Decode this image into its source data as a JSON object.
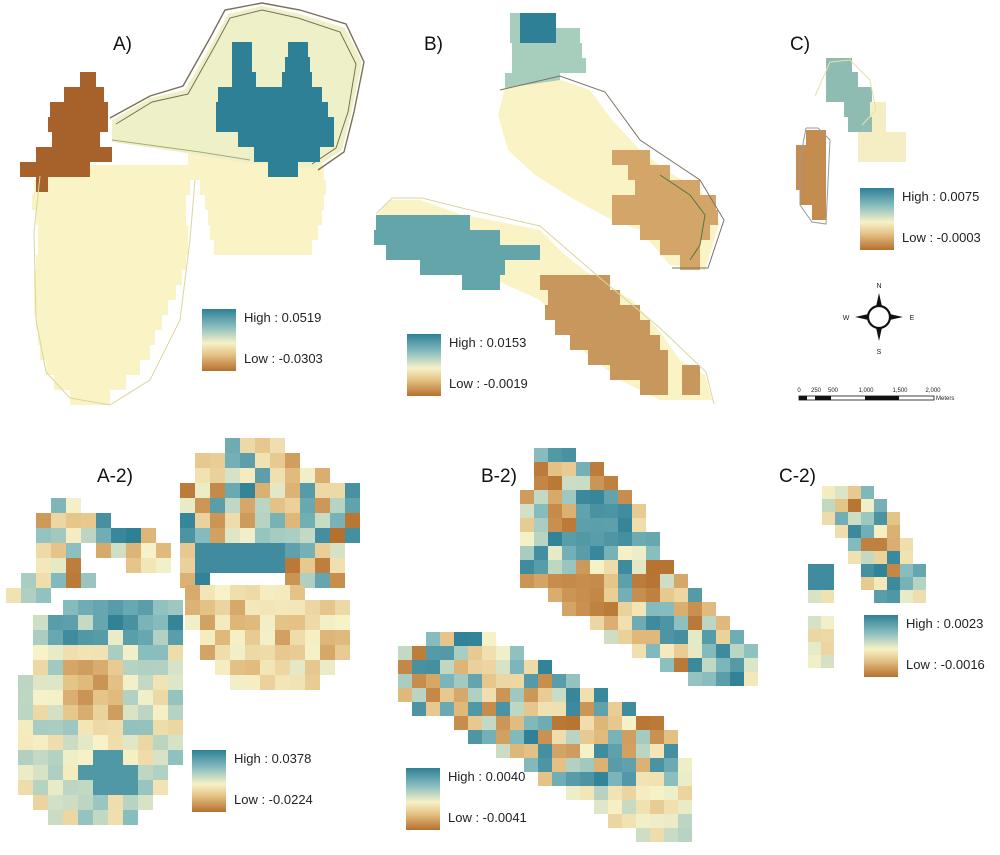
{
  "panels": {
    "a": {
      "label": "A)",
      "high": "High : 0.0519",
      "low": "Low : -0.0303"
    },
    "b": {
      "label": "B)",
      "high": "High : 0.0153",
      "low": "Low : -0.0019"
    },
    "c": {
      "label": "C)",
      "high": "High : 0.0075",
      "low": "Low : -0.0003"
    },
    "a2": {
      "label": "A-2)",
      "high": "High : 0.0378",
      "low": "Low : -0.0224"
    },
    "b2": {
      "label": "B-2)",
      "high": "High : 0.0040",
      "low": "Low : -0.0041"
    },
    "c2": {
      "label": "C-2)",
      "high": "High : 0.0023",
      "low": "Low : -0.0016"
    }
  },
  "compass": {
    "n": "N",
    "s": "S",
    "e": "E",
    "w": "W"
  },
  "scale_bar": {
    "ticks": [
      "0",
      "250",
      "500",
      "1,000",
      "1,500",
      "2,000"
    ],
    "unit": "Meters"
  },
  "colors": {
    "high": "#2e8096",
    "mid_high": "#86bcbe",
    "mid": "#f7f2c8",
    "mid_low": "#e3bf82",
    "low": "#b5702e",
    "outline": "#d9d79a"
  }
}
